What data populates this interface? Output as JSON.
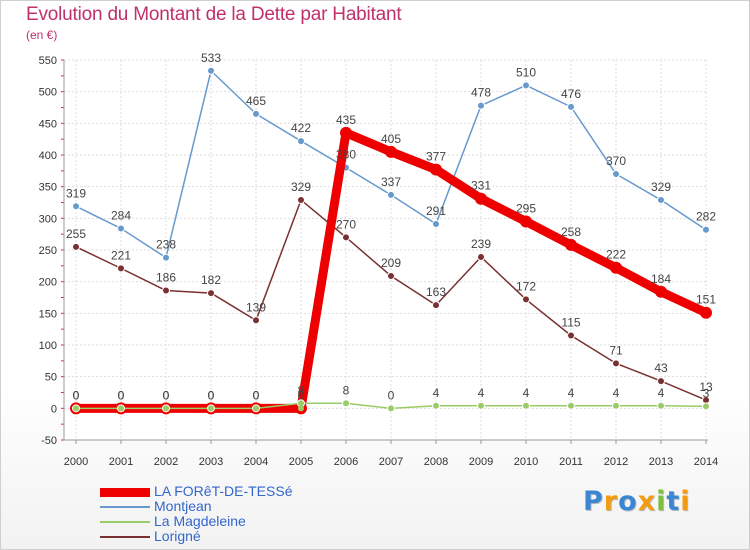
{
  "title": "Evolution du Montant de la Dette par Habitant",
  "subtitle": "(en €)",
  "logo": {
    "letters": [
      "P",
      "r",
      "o",
      "x",
      "i",
      "t",
      "i"
    ],
    "colors": [
      "#3a86d4",
      "#f39c12",
      "#3a86d4",
      "#f39c12",
      "#7fbf3f",
      "#3a86d4",
      "#f39c12"
    ]
  },
  "chart_data": {
    "type": "line",
    "x": [
      "2000",
      "2001",
      "2002",
      "2003",
      "2004",
      "2005",
      "2006",
      "2007",
      "2008",
      "2009",
      "2010",
      "2011",
      "2012",
      "2013",
      "2014"
    ],
    "ylim": [
      -50,
      550
    ],
    "yticks": [
      "-50",
      "0",
      "50",
      "100",
      "150",
      "200",
      "250",
      "300",
      "350",
      "400",
      "450",
      "500",
      "550"
    ],
    "grid": true,
    "legend_position": "bottom-left",
    "series": [
      {
        "name": "LA FORêT-DE-TESSé",
        "color": "#ee0000",
        "values": [
          0,
          0,
          0,
          0,
          0,
          0,
          435,
          405,
          377,
          331,
          295,
          258,
          222,
          184,
          151
        ],
        "labels": [
          "0",
          "0",
          "0",
          "0",
          "0",
          "0",
          "435",
          "405",
          "377",
          "331",
          "295",
          "258",
          "222",
          "184",
          "151"
        ]
      },
      {
        "name": "Montjean",
        "color": "#6699cc",
        "values": [
          319,
          284,
          238,
          533,
          465,
          422,
          380,
          337,
          291,
          478,
          510,
          476,
          370,
          329,
          282
        ],
        "labels": [
          "319",
          "284",
          "238",
          "533",
          "465",
          "422",
          "380",
          "337",
          "291",
          "478",
          "510",
          "476",
          "370",
          "329",
          "282"
        ]
      },
      {
        "name": "La Magdeleine",
        "color": "#99cc66",
        "values": [
          0,
          0,
          0,
          0,
          0,
          8,
          8,
          0,
          4,
          4,
          4,
          4,
          4,
          4,
          3
        ],
        "labels": [
          "0",
          "0",
          "0",
          "0",
          "0",
          "8",
          "8",
          "0",
          "4",
          "4",
          "4",
          "4",
          "4",
          "4",
          "3"
        ]
      },
      {
        "name": "Lorigné",
        "color": "#7a3030",
        "values": [
          255,
          221,
          186,
          182,
          139,
          329,
          270,
          209,
          163,
          239,
          172,
          115,
          71,
          43,
          13
        ],
        "labels": [
          "255",
          "221",
          "186",
          "182",
          "139",
          "329",
          "270",
          "209",
          "163",
          "239",
          "172",
          "115",
          "71",
          "43",
          "13"
        ]
      }
    ]
  }
}
